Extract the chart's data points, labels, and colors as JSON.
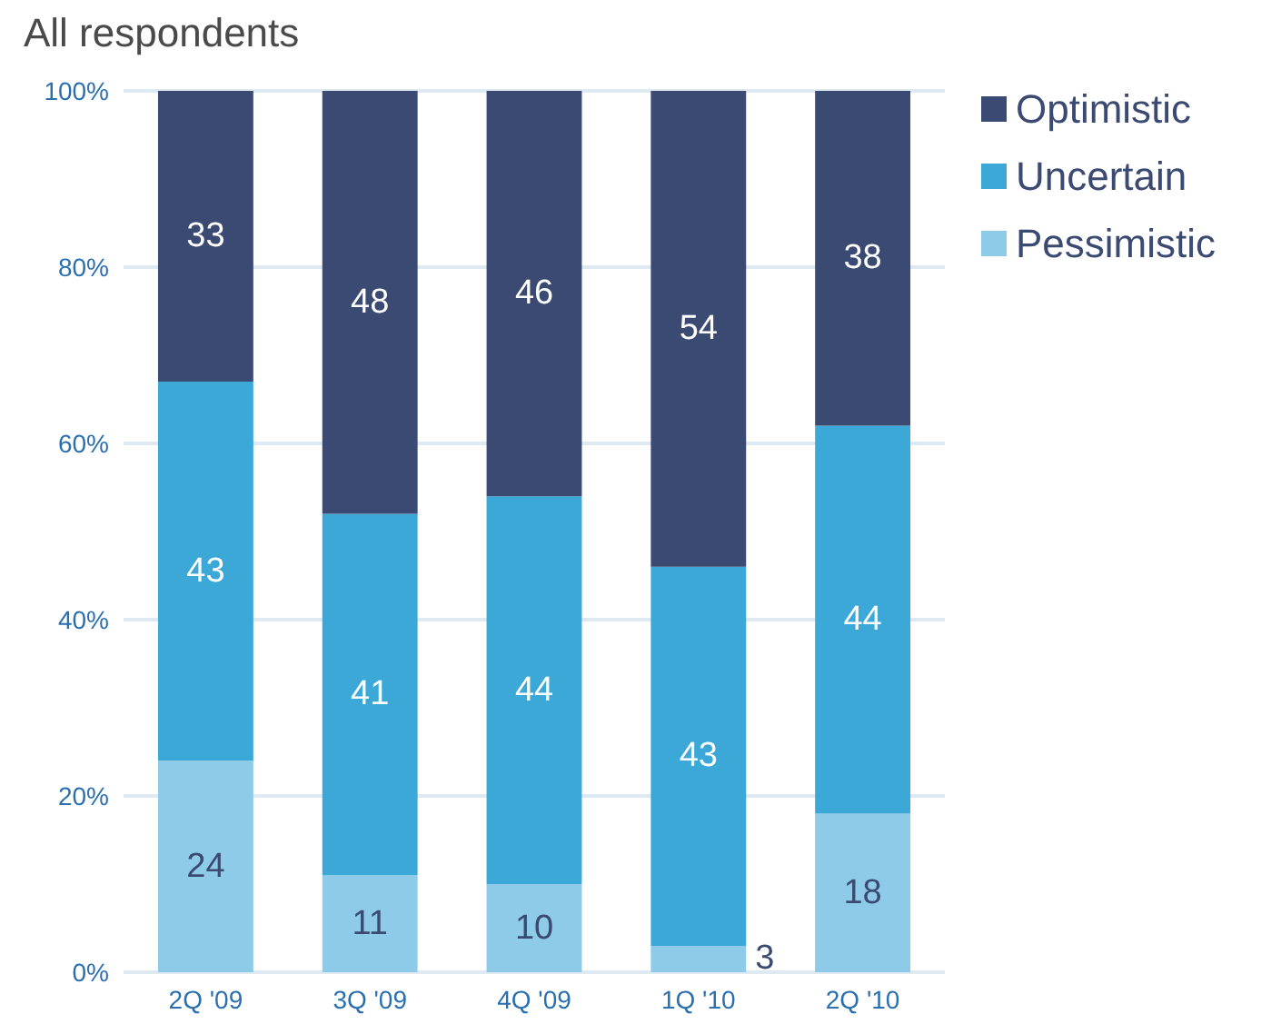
{
  "chart_data": {
    "type": "bar",
    "title": "All respondents",
    "stacked": true,
    "categories": [
      "2Q '09",
      "3Q '09",
      "4Q '09",
      "1Q '10",
      "2Q '10"
    ],
    "series": [
      {
        "name": "Pessimistic",
        "color": "#8ecbe8",
        "values": [
          24,
          11,
          10,
          3,
          18
        ]
      },
      {
        "name": "Uncertain",
        "color": "#3ca8d8",
        "values": [
          43,
          41,
          44,
          43,
          44
        ]
      },
      {
        "name": "Optimistic",
        "color": "#3b4a72",
        "values": [
          33,
          48,
          46,
          54,
          38
        ]
      }
    ],
    "ylim": [
      0,
      100
    ],
    "yticks": [
      {
        "value": 0,
        "label": "0%"
      },
      {
        "value": 20,
        "label": "20%"
      },
      {
        "value": 40,
        "label": "40%"
      },
      {
        "value": 60,
        "label": "60%"
      },
      {
        "value": 80,
        "label": "80%"
      },
      {
        "value": 100,
        "label": "100%"
      }
    ],
    "grid": "y",
    "legend": "top right",
    "data_labels": true
  }
}
